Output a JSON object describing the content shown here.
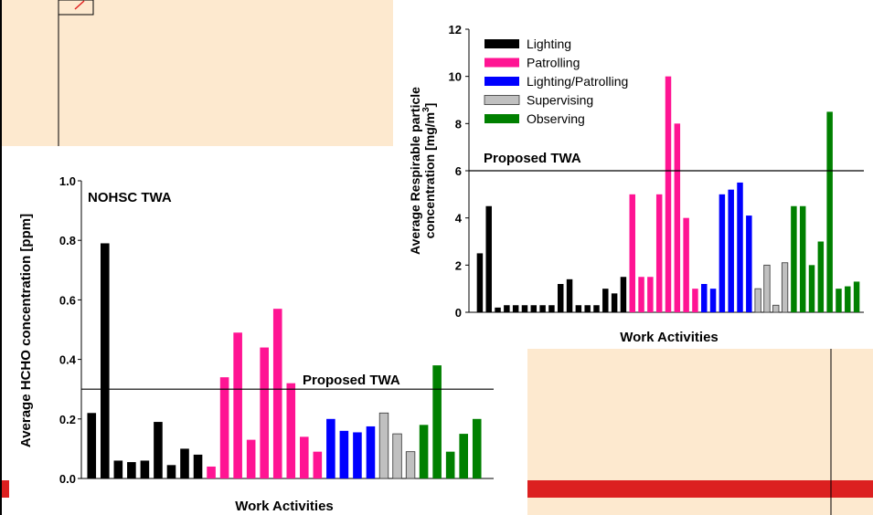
{
  "chart_data": [
    {
      "type": "bar",
      "title": "",
      "xlabel": "Work Activities",
      "ylabel": "Average HCHO concentration [ppm]",
      "ylim": [
        0,
        1.0
      ],
      "yticks": [
        "0.0",
        "0.2",
        "0.4",
        "0.6",
        "0.8",
        "1.0"
      ],
      "grid": false,
      "annotations": [
        "NOHSC TWA",
        "Proposed TWA"
      ],
      "reference_lines": [
        {
          "label": "Proposed TWA",
          "value": 0.3
        }
      ],
      "series": [
        {
          "group": "Lighting",
          "color": "#000000",
          "values": [
            0.22,
            0.79,
            0.06,
            0.055,
            0.06,
            0.19,
            0.045,
            0.1,
            0.08
          ]
        },
        {
          "group": "Patrolling",
          "color": "#ff1493",
          "values": [
            0.04,
            0.34,
            0.49,
            0.13,
            0.44,
            0.57,
            0.32,
            0.14,
            0.09
          ]
        },
        {
          "group": "Lighting/Patrolling",
          "color": "#0000ff",
          "values": [
            0.2,
            0.16,
            0.155,
            0.175
          ]
        },
        {
          "group": "Supervising",
          "color": "#c0c0c0",
          "values": [
            0.22,
            0.15,
            0.09
          ]
        },
        {
          "group": "Observing",
          "color": "#008000",
          "values": [
            0.18,
            0.38,
            0.09,
            0.15,
            0.2
          ]
        }
      ]
    },
    {
      "type": "bar",
      "title": "",
      "xlabel": "Work Activities",
      "ylabel_line1": "Average Respirable particle",
      "ylabel_line2": "concentration [mg/m",
      "ylabel_sup": "3",
      "ylabel_end": "]",
      "ylim": [
        0,
        12
      ],
      "yticks": [
        "0",
        "2",
        "4",
        "6",
        "8",
        "10",
        "12"
      ],
      "grid": false,
      "legend_position": "top-left",
      "annotations": [
        "Proposed TWA"
      ],
      "reference_lines": [
        {
          "label": "Proposed TWA",
          "value": 6
        }
      ],
      "series": [
        {
          "name": "Lighting",
          "color": "#000000",
          "values": [
            2.5,
            4.5,
            0.2,
            0.3,
            0.3,
            0.3,
            0.3,
            0.3,
            0.3,
            1.2,
            1.4,
            0.3,
            0.3,
            0.3,
            1.0,
            0.8,
            1.5
          ]
        },
        {
          "name": "Patrolling",
          "color": "#ff1493",
          "values": [
            5.0,
            1.5,
            1.5,
            5.0,
            10.0,
            8.0,
            4.0,
            1.0
          ]
        },
        {
          "name": "Lighting/Patrolling",
          "color": "#0000ff",
          "values": [
            1.2,
            1.0,
            5.0,
            5.2,
            5.5,
            4.1
          ]
        },
        {
          "name": "Supervising",
          "color": "#c0c0c0",
          "values": [
            1.0,
            2.0,
            0.3,
            2.1
          ]
        },
        {
          "name": "Observing",
          "color": "#008000",
          "values": [
            4.5,
            4.5,
            2.0,
            3.0,
            8.5,
            1.0,
            1.1,
            1.3
          ]
        }
      ]
    }
  ]
}
